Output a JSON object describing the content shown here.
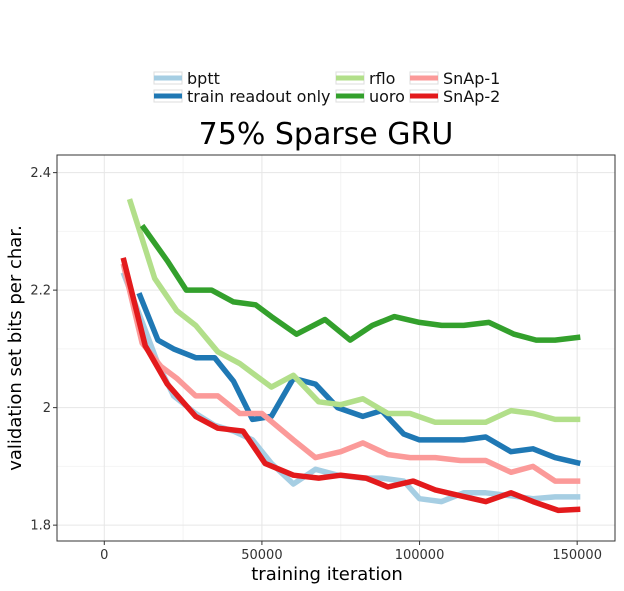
{
  "chart_data": {
    "type": "line",
    "title": "75% Sparse GRU",
    "xlabel": "training iteration",
    "ylabel": "validation set bits per char.",
    "xlim": [
      -15000,
      162000
    ],
    "ylim": [
      1.773,
      2.43
    ],
    "xticks": [
      0,
      50000,
      100000,
      150000
    ],
    "xtick_labels": [
      "0",
      "50000",
      "100000",
      "150000"
    ],
    "yticks": [
      1.8,
      2.0,
      2.2,
      2.4
    ],
    "ytick_labels": [
      "1.8",
      "2",
      "2.2",
      "2.4"
    ],
    "grid": true,
    "legend_position": "top",
    "series": [
      {
        "name": "bptt",
        "color": "#a6cee3",
        "x": [
          6000,
          11000,
          17000,
          22000,
          29000,
          35000,
          41000,
          47000,
          53000,
          60000,
          67000,
          74000,
          82000,
          88000,
          95000,
          100000,
          107000,
          114000,
          121000,
          129000,
          136000,
          143000,
          151000
        ],
        "y": [
          2.23,
          2.16,
          2.075,
          2.02,
          1.99,
          1.97,
          1.96,
          1.945,
          1.905,
          1.87,
          1.895,
          1.885,
          1.88,
          1.88,
          1.875,
          1.845,
          1.84,
          1.855,
          1.855,
          1.85,
          1.845,
          1.848,
          1.848
        ]
      },
      {
        "name": "train readout only",
        "color": "#1f78b4",
        "x": [
          11000,
          17000,
          22000,
          29000,
          35000,
          41000,
          47000,
          53000,
          60000,
          67000,
          74000,
          82000,
          88000,
          95000,
          100000,
          107000,
          114000,
          121000,
          129000,
          136000,
          143000,
          151000
        ],
        "y": [
          2.195,
          2.115,
          2.1,
          2.085,
          2.085,
          2.045,
          1.98,
          1.985,
          2.05,
          2.04,
          2.0,
          1.985,
          1.995,
          1.955,
          1.945,
          1.945,
          1.945,
          1.95,
          1.925,
          1.93,
          1.915,
          1.905
        ]
      },
      {
        "name": "rflo",
        "color": "#b2df8a",
        "x": [
          8000,
          16000,
          23000,
          29000,
          36000,
          43000,
          53000,
          60000,
          68000,
          75000,
          82000,
          90000,
          97000,
          105000,
          113000,
          121000,
          129000,
          136000,
          143000,
          151000
        ],
        "y": [
          2.355,
          2.22,
          2.165,
          2.14,
          2.095,
          2.075,
          2.035,
          2.055,
          2.01,
          2.005,
          2.015,
          1.99,
          1.99,
          1.975,
          1.975,
          1.975,
          1.995,
          1.99,
          1.98,
          1.98
        ]
      },
      {
        "name": "uoro",
        "color": "#33a02c",
        "x": [
          12000,
          20000,
          26000,
          34000,
          41000,
          48000,
          53000,
          61000,
          70000,
          78000,
          85000,
          92000,
          100000,
          107000,
          114000,
          122000,
          130000,
          137000,
          143000,
          151000
        ],
        "y": [
          2.31,
          2.25,
          2.2,
          2.2,
          2.18,
          2.175,
          2.155,
          2.125,
          2.15,
          2.115,
          2.14,
          2.155,
          2.145,
          2.14,
          2.14,
          2.145,
          2.125,
          2.115,
          2.115,
          2.12
        ]
      },
      {
        "name": "SnAp-1",
        "color": "#fb9a99",
        "x": [
          6000,
          12000,
          18000,
          23000,
          29000,
          36000,
          43000,
          50000,
          60000,
          67000,
          75000,
          82000,
          90000,
          97000,
          105000,
          113000,
          121000,
          129000,
          136000,
          143000,
          151000
        ],
        "y": [
          2.245,
          2.11,
          2.07,
          2.05,
          2.02,
          2.02,
          1.99,
          1.99,
          1.945,
          1.915,
          1.925,
          1.94,
          1.92,
          1.915,
          1.915,
          1.91,
          1.91,
          1.89,
          1.9,
          1.875,
          1.875
        ]
      },
      {
        "name": "SnAp-2",
        "color": "#e31a1c",
        "x": [
          6000,
          13000,
          20000,
          29000,
          36000,
          44000,
          51000,
          60000,
          68000,
          75000,
          83000,
          90000,
          98000,
          105000,
          113000,
          121000,
          129000,
          136000,
          144000,
          151000
        ],
        "y": [
          2.255,
          2.105,
          2.04,
          1.985,
          1.965,
          1.96,
          1.905,
          1.885,
          1.88,
          1.885,
          1.88,
          1.865,
          1.875,
          1.86,
          1.85,
          1.84,
          1.855,
          1.84,
          1.825,
          1.827
        ]
      }
    ]
  }
}
